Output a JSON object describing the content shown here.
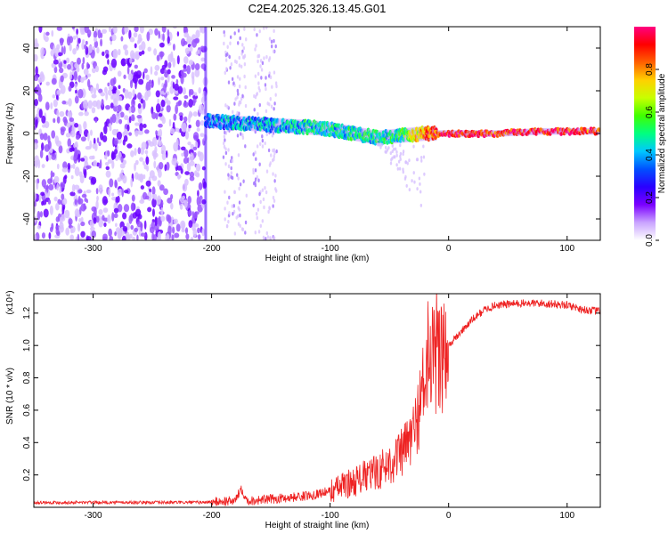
{
  "title": "C2E4.2025.326.13.45.G01",
  "chart_data": [
    {
      "type": "heatmap",
      "name": "spectrogram",
      "xlabel": "Height of straight line (km)",
      "ylabel": "Frequency (Hz)",
      "xlim": [
        -350,
        128
      ],
      "ylim": [
        -50,
        50
      ],
      "xticks": [
        -300,
        -200,
        -100,
        0,
        100
      ],
      "yticks": [
        -40,
        -20,
        0,
        20,
        40
      ],
      "colorbar": {
        "label": "Normalized spectral amplitude",
        "range": [
          0,
          1
        ],
        "ticks": [
          "0.0",
          "0.2",
          "0.4",
          "0.6",
          "0.8"
        ],
        "colors": [
          "#ffffff",
          "#c9a3ff",
          "#7a00ff",
          "#2a00ff",
          "#0050ff",
          "#00c8ff",
          "#00ff80",
          "#40ff00",
          "#c8ff00",
          "#ffd000",
          "#ff6000",
          "#ff0000",
          "#ff0080"
        ]
      },
      "noise_band": {
        "x_range": [
          -350,
          -205
        ],
        "amplitude": 0.2
      },
      "sparse_bands": [
        [
          -190,
          -170
        ],
        [
          -165,
          -145
        ]
      ],
      "signal_ridge": {
        "x": [
          -205,
          -180,
          -150,
          -120,
          -100,
          -80,
          -60,
          -40,
          -20,
          0,
          40,
          80,
          128
        ],
        "frequency": [
          6,
          5,
          4,
          3,
          2,
          0,
          -2,
          -1,
          0,
          0,
          0,
          1,
          1
        ],
        "amplitude": [
          0.35,
          0.4,
          0.4,
          0.45,
          0.45,
          0.45,
          0.45,
          0.5,
          0.8,
          0.95,
          0.9,
          0.92,
          0.85
        ]
      }
    },
    {
      "type": "line",
      "name": "snr",
      "xlabel": "Height of straight line (km)",
      "ylabel": "SNR (10 * v/v)",
      "y_multiplier": "(x10⁴)",
      "xlim": [
        -350,
        128
      ],
      "ylim": [
        0,
        1.32
      ],
      "xticks": [
        -300,
        -200,
        -100,
        0,
        100
      ],
      "yticks": [
        "0.2",
        "0.4",
        "0.6",
        "0.8",
        "1.0",
        "1.2"
      ],
      "color": "#ee2222",
      "series": [
        {
          "name": "SNR",
          "x": [
            -350,
            -300,
            -250,
            -210,
            -180,
            -175,
            -170,
            -150,
            -120,
            -100,
            -80,
            -60,
            -50,
            -40,
            -30,
            -25,
            -20,
            -15,
            -10,
            -5,
            0,
            10,
            20,
            30,
            40,
            60,
            80,
            100,
            115,
            128
          ],
          "values": [
            0.03,
            0.03,
            0.03,
            0.03,
            0.04,
            0.12,
            0.04,
            0.05,
            0.07,
            0.1,
            0.16,
            0.22,
            0.27,
            0.33,
            0.45,
            0.6,
            0.8,
            0.9,
            0.92,
            0.95,
            1.0,
            1.08,
            1.16,
            1.22,
            1.25,
            1.26,
            1.26,
            1.25,
            1.22,
            1.21
          ]
        }
      ]
    }
  ]
}
